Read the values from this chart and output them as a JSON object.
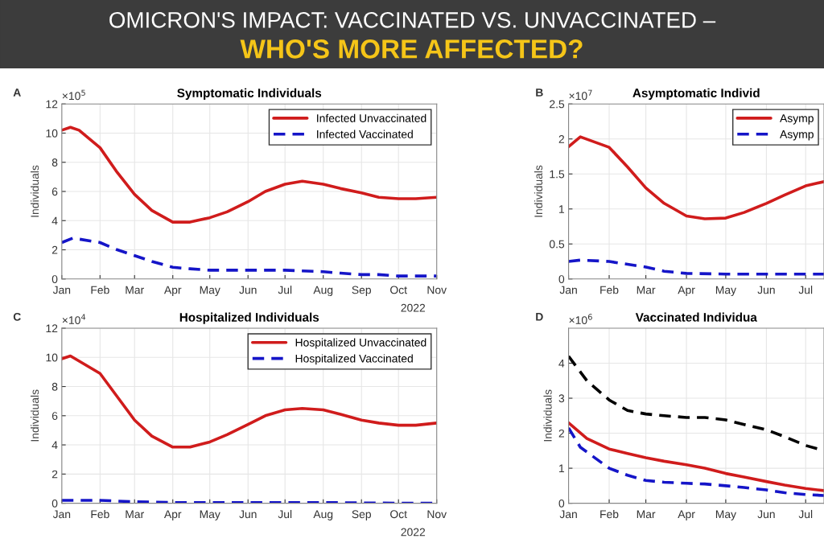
{
  "chart_data": [
    {
      "type": "line",
      "title": "Symptomatic Individuals",
      "ylabel": "Individuals",
      "annotations": [
        "A",
        "×10$^{5}$",
        "2022"
      ],
      "grid": true,
      "legend": "top right",
      "xlim": [
        "2022-01-01",
        "2022-11-01"
      ],
      "xticks": [
        {
          "value": "2022-01-01",
          "label": "Jan"
        },
        {
          "value": "2022-02-01",
          "label": "Feb"
        },
        {
          "value": "2022-03-01",
          "label": "Mar"
        },
        {
          "value": "2022-04-01",
          "label": "Apr"
        },
        {
          "value": "2022-05-01",
          "label": "May"
        },
        {
          "value": "2022-06-01",
          "label": "Jun"
        },
        {
          "value": "2022-07-01",
          "label": "Jul"
        },
        {
          "value": "2022-08-01",
          "label": "Aug"
        },
        {
          "value": "2022-09-01",
          "label": "Sep"
        },
        {
          "value": "2022-10-01",
          "label": "Oct"
        },
        {
          "value": "2022-11-01",
          "label": "Nov"
        }
      ],
      "ylim": [
        0,
        12
      ],
      "yticks": [
        0,
        2,
        4,
        6,
        8,
        10,
        12
      ],
      "series": [
        {
          "name": "Infected Unvaccinated",
          "color": "#d01c1c",
          "line_style": "solid",
          "x": [
            "2022-01-01",
            "2022-01-08",
            "2022-01-15",
            "2022-02-01",
            "2022-02-15",
            "2022-03-01",
            "2022-03-15",
            "2022-04-01",
            "2022-04-15",
            "2022-05-01",
            "2022-05-15",
            "2022-06-01",
            "2022-06-15",
            "2022-07-01",
            "2022-07-15",
            "2022-08-01",
            "2022-08-15",
            "2022-09-01",
            "2022-09-15",
            "2022-10-01",
            "2022-10-15",
            "2022-11-01"
          ],
          "values": [
            10.2,
            10.4,
            10.2,
            9.0,
            7.3,
            5.8,
            4.7,
            3.9,
            3.9,
            4.2,
            4.6,
            5.3,
            6.0,
            6.5,
            6.7,
            6.5,
            6.2,
            5.9,
            5.6,
            5.5,
            5.5,
            5.6
          ]
        },
        {
          "name": "Infected Vaccinated",
          "color": "#1515c8",
          "line_style": "dashed",
          "x": [
            "2022-01-01",
            "2022-01-10",
            "2022-02-01",
            "2022-02-15",
            "2022-03-01",
            "2022-03-15",
            "2022-04-01",
            "2022-04-15",
            "2022-05-01",
            "2022-06-01",
            "2022-07-01",
            "2022-08-01",
            "2022-08-15",
            "2022-09-01",
            "2022-09-15",
            "2022-10-01",
            "2022-11-01"
          ],
          "values": [
            2.5,
            2.8,
            2.5,
            2.0,
            1.6,
            1.2,
            0.8,
            0.7,
            0.6,
            0.6,
            0.6,
            0.5,
            0.4,
            0.3,
            0.3,
            0.2,
            0.2
          ]
        }
      ]
    },
    {
      "type": "line",
      "title": "Asymptomatic Individ",
      "ylabel": "Individuals",
      "annotations": [
        "B",
        "×10$^{7}$"
      ],
      "grid": true,
      "legend": "top right",
      "xlim": [
        "2022-01-01",
        "2022-07-15"
      ],
      "xticks": [
        {
          "value": "2022-01-01",
          "label": "Jan"
        },
        {
          "value": "2022-02-01",
          "label": "Feb"
        },
        {
          "value": "2022-03-01",
          "label": "Mar"
        },
        {
          "value": "2022-04-01",
          "label": "Apr"
        },
        {
          "value": "2022-05-01",
          "label": "May"
        },
        {
          "value": "2022-06-01",
          "label": "Jun"
        },
        {
          "value": "2022-07-01",
          "label": "Jul"
        }
      ],
      "ylim": [
        0,
        2.5
      ],
      "yticks": [
        0,
        0.5,
        1,
        1.5,
        2,
        2.5
      ],
      "series": [
        {
          "name": "Asymp",
          "color": "#d01c1c",
          "line_style": "solid",
          "x": [
            "2022-01-01",
            "2022-01-10",
            "2022-02-01",
            "2022-02-15",
            "2022-03-01",
            "2022-03-15",
            "2022-04-01",
            "2022-04-15",
            "2022-05-01",
            "2022-05-15",
            "2022-06-01",
            "2022-06-15",
            "2022-07-01",
            "2022-07-15"
          ],
          "values": [
            1.89,
            2.03,
            1.88,
            1.6,
            1.3,
            1.08,
            0.9,
            0.86,
            0.87,
            0.95,
            1.08,
            1.2,
            1.33,
            1.39
          ]
        },
        {
          "name": "Asymp",
          "color": "#1515c8",
          "line_style": "dashed",
          "x": [
            "2022-01-01",
            "2022-01-10",
            "2022-02-01",
            "2022-02-15",
            "2022-03-01",
            "2022-03-15",
            "2022-04-01",
            "2022-05-01",
            "2022-06-01",
            "2022-07-01",
            "2022-07-15"
          ],
          "values": [
            0.25,
            0.27,
            0.25,
            0.21,
            0.17,
            0.11,
            0.08,
            0.07,
            0.07,
            0.07,
            0.07
          ]
        }
      ]
    },
    {
      "type": "line",
      "title": "Hospitalized Individuals",
      "ylabel": "Individuals",
      "annotations": [
        "C",
        "×10$^{4}$",
        "2022"
      ],
      "grid": true,
      "legend": "top right",
      "xlim": [
        "2022-01-01",
        "2022-11-01"
      ],
      "xticks": [
        {
          "value": "2022-01-01",
          "label": "Jan"
        },
        {
          "value": "2022-02-01",
          "label": "Feb"
        },
        {
          "value": "2022-03-01",
          "label": "Mar"
        },
        {
          "value": "2022-04-01",
          "label": "Apr"
        },
        {
          "value": "2022-05-01",
          "label": "May"
        },
        {
          "value": "2022-06-01",
          "label": "Jun"
        },
        {
          "value": "2022-07-01",
          "label": "Jul"
        },
        {
          "value": "2022-08-01",
          "label": "Aug"
        },
        {
          "value": "2022-09-01",
          "label": "Sep"
        },
        {
          "value": "2022-10-01",
          "label": "Oct"
        },
        {
          "value": "2022-11-01",
          "label": "Nov"
        }
      ],
      "ylim": [
        0,
        12
      ],
      "yticks": [
        0,
        2,
        4,
        6,
        8,
        10,
        12
      ],
      "series": [
        {
          "name": "Hospitalized Unvaccinated",
          "color": "#d01c1c",
          "line_style": "solid",
          "x": [
            "2022-01-01",
            "2022-01-08",
            "2022-02-01",
            "2022-02-15",
            "2022-03-01",
            "2022-03-15",
            "2022-04-01",
            "2022-04-15",
            "2022-05-01",
            "2022-05-15",
            "2022-06-01",
            "2022-06-15",
            "2022-07-01",
            "2022-07-15",
            "2022-08-01",
            "2022-08-15",
            "2022-09-01",
            "2022-09-15",
            "2022-10-01",
            "2022-10-15",
            "2022-11-01"
          ],
          "values": [
            9.9,
            10.1,
            8.9,
            7.3,
            5.7,
            4.6,
            3.85,
            3.85,
            4.2,
            4.7,
            5.4,
            6.0,
            6.4,
            6.5,
            6.4,
            6.1,
            5.7,
            5.5,
            5.35,
            5.35,
            5.5
          ]
        },
        {
          "name": "Hospitalized Vaccinated",
          "color": "#1515c8",
          "line_style": "dashed",
          "x": [
            "2022-01-01",
            "2022-02-01",
            "2022-03-01",
            "2022-04-01",
            "2022-06-01",
            "2022-08-01",
            "2022-10-01",
            "2022-11-01"
          ],
          "values": [
            0.2,
            0.2,
            0.1,
            0.05,
            0.05,
            0.05,
            0.0,
            0.0
          ]
        }
      ]
    },
    {
      "type": "line",
      "title": "Vaccinated Individua",
      "ylabel": "Individuals",
      "annotations": [
        "D",
        "×10$^{6}$"
      ],
      "grid": true,
      "xlim": [
        "2022-01-01",
        "2022-07-15"
      ],
      "xticks": [
        {
          "value": "2022-01-01",
          "label": "Jan"
        },
        {
          "value": "2022-02-01",
          "label": "Feb"
        },
        {
          "value": "2022-03-01",
          "label": "Mar"
        },
        {
          "value": "2022-04-01",
          "label": "Apr"
        },
        {
          "value": "2022-05-01",
          "label": "May"
        },
        {
          "value": "2022-06-01",
          "label": "Jun"
        },
        {
          "value": "2022-07-01",
          "label": "Jul"
        }
      ],
      "ylim": [
        0,
        5
      ],
      "yticks": [
        0,
        1,
        2,
        3,
        4
      ],
      "series": [
        {
          "color": "#000000",
          "line_style": "dashed",
          "x": [
            "2022-01-01",
            "2022-01-15",
            "2022-02-01",
            "2022-02-15",
            "2022-03-01",
            "2022-03-15",
            "2022-04-01",
            "2022-04-15",
            "2022-05-01",
            "2022-05-15",
            "2022-06-01",
            "2022-06-15",
            "2022-07-01",
            "2022-07-15"
          ],
          "values": [
            4.2,
            3.5,
            2.95,
            2.65,
            2.55,
            2.5,
            2.45,
            2.45,
            2.38,
            2.25,
            2.1,
            1.9,
            1.65,
            1.5
          ]
        },
        {
          "color": "#d01c1c",
          "line_style": "solid",
          "x": [
            "2022-01-01",
            "2022-01-15",
            "2022-02-01",
            "2022-02-15",
            "2022-03-01",
            "2022-03-15",
            "2022-04-01",
            "2022-04-15",
            "2022-05-01",
            "2022-05-15",
            "2022-06-01",
            "2022-06-15",
            "2022-07-01",
            "2022-07-15"
          ],
          "values": [
            2.3,
            1.85,
            1.55,
            1.42,
            1.3,
            1.2,
            1.1,
            1.0,
            0.85,
            0.75,
            0.62,
            0.52,
            0.42,
            0.36
          ]
        },
        {
          "color": "#1515c8",
          "line_style": "dashed",
          "x": [
            "2022-01-01",
            "2022-01-10",
            "2022-02-01",
            "2022-02-15",
            "2022-03-01",
            "2022-03-15",
            "2022-04-01",
            "2022-04-15",
            "2022-05-01",
            "2022-05-15",
            "2022-06-01",
            "2022-06-15",
            "2022-07-01",
            "2022-07-15"
          ],
          "values": [
            2.15,
            1.6,
            1.0,
            0.8,
            0.65,
            0.6,
            0.57,
            0.55,
            0.5,
            0.45,
            0.38,
            0.3,
            0.25,
            0.22
          ]
        }
      ]
    },
    {
      "type": "other",
      "title": "OMICRON'S IMPACT: VACCINATED VS. UNVACCINATED –",
      "subtitle": "WHO'S MORE AFFECTED?"
    }
  ]
}
